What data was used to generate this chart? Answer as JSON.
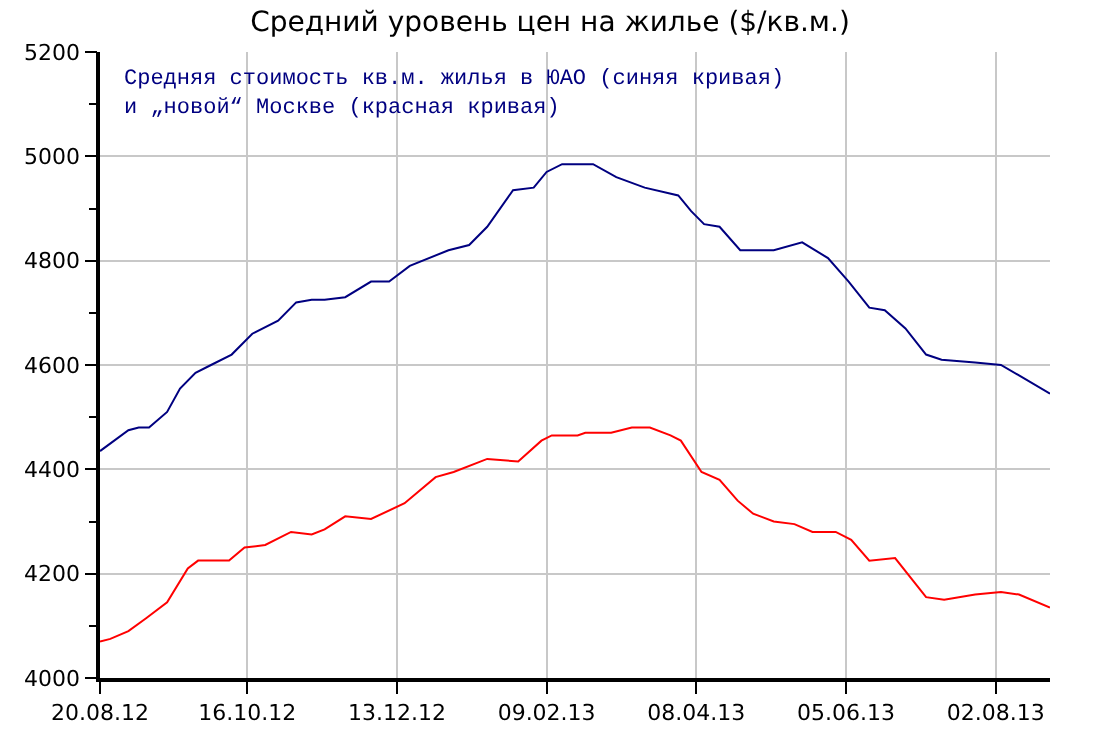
{
  "chart_data": {
    "type": "line",
    "title": "Средний уровень цен на жилье ($/кв.м.)",
    "annotations": [
      "Средняя стоимость кв.м. жилья в ЮАО (синяя кривая)\nи „новой“ Москве (красная кривая)"
    ],
    "series": [
      {
        "color": "#000080",
        "x": [
          "2012-08-20",
          "2012-08-31",
          "2012-09-04",
          "2012-09-08",
          "2012-09-15",
          "2012-09-20",
          "2012-09-26",
          "2012-10-02",
          "2012-10-10",
          "2012-10-18",
          "2012-10-28",
          "2012-11-04",
          "2012-11-10",
          "2012-11-15",
          "2012-11-23",
          "2012-12-03",
          "2012-12-10",
          "2012-12-18",
          "2013-01-02",
          "2013-01-10",
          "2013-01-17",
          "2013-01-27",
          "2013-02-04",
          "2013-02-09",
          "2013-02-15",
          "2013-02-19",
          "2013-02-27",
          "2013-03-08",
          "2013-03-19",
          "2013-04-01",
          "2013-04-06",
          "2013-04-11",
          "2013-04-17",
          "2013-04-25",
          "2013-05-08",
          "2013-05-19",
          "2013-05-29",
          "2013-06-06",
          "2013-06-14",
          "2013-06-20",
          "2013-06-28",
          "2013-07-06",
          "2013-07-12",
          "2013-07-25",
          "2013-08-04",
          "2013-08-11",
          "2013-08-23"
        ],
        "values": [
          4435,
          4475,
          4480,
          4480,
          4510,
          4555,
          4585,
          4600,
          4620,
          4660,
          4685,
          4720,
          4725,
          4725,
          4730,
          4760,
          4760,
          4790,
          4820,
          4830,
          4865,
          4935,
          4940,
          4970,
          4985,
          4985,
          4985,
          4960,
          4940,
          4925,
          4895,
          4870,
          4865,
          4820,
          4820,
          4835,
          4805,
          4760,
          4710,
          4705,
          4670,
          4620,
          4610,
          4605,
          4600,
          4580,
          4545
        ]
      },
      {
        "color": "#ff0000",
        "x": [
          "2012-08-20",
          "2012-08-24",
          "2012-08-31",
          "2012-09-07",
          "2012-09-15",
          "2012-09-23",
          "2012-09-27",
          "2012-10-09",
          "2012-10-15",
          "2012-10-23",
          "2012-11-02",
          "2012-11-10",
          "2012-11-15",
          "2012-11-23",
          "2012-12-03",
          "2012-12-16",
          "2012-12-28",
          "2013-01-04",
          "2013-01-17",
          "2013-01-29",
          "2013-02-07",
          "2013-02-11",
          "2013-02-21",
          "2013-02-24",
          "2013-03-06",
          "2013-03-14",
          "2013-03-21",
          "2013-03-29",
          "2013-04-02",
          "2013-04-10",
          "2013-04-17",
          "2013-04-24",
          "2013-04-30",
          "2013-05-08",
          "2013-05-16",
          "2013-05-23",
          "2013-06-01",
          "2013-06-07",
          "2013-06-14",
          "2013-06-24",
          "2013-07-06",
          "2013-07-13",
          "2013-07-25",
          "2013-08-04",
          "2013-08-11",
          "2013-08-23"
        ],
        "values": [
          4070,
          4075,
          4090,
          4115,
          4145,
          4210,
          4225,
          4225,
          4250,
          4255,
          4280,
          4275,
          4285,
          4310,
          4305,
          4335,
          4385,
          4395,
          4420,
          4415,
          4455,
          4465,
          4465,
          4470,
          4470,
          4480,
          4480,
          4465,
          4455,
          4395,
          4380,
          4340,
          4315,
          4300,
          4295,
          4280,
          4280,
          4265,
          4225,
          4230,
          4155,
          4150,
          4160,
          4165,
          4160,
          4135
        ]
      }
    ],
    "xlim": [
      "2012-08-20",
      "2013-08-23"
    ],
    "xticks": [
      {
        "value": "2012-08-20",
        "label": "20.08.12"
      },
      {
        "value": "2012-10-16",
        "label": "16.10.12"
      },
      {
        "value": "2012-12-13",
        "label": "13.12.12"
      },
      {
        "value": "2013-02-09",
        "label": "09.02.13"
      },
      {
        "value": "2013-04-08",
        "label": "08.04.13"
      },
      {
        "value": "2013-06-05",
        "label": "05.06.13"
      },
      {
        "value": "2013-08-02",
        "label": "02.08.13"
      }
    ],
    "ylim": [
      4000,
      5200
    ],
    "yticks": [
      4000,
      {
        "value": 4100,
        "label": null
      },
      4200,
      {
        "value": 4300,
        "label": null
      },
      4400,
      {
        "value": 4500,
        "label": null
      },
      4600,
      {
        "value": 4700,
        "label": null
      },
      4800,
      {
        "value": 4900,
        "label": null
      },
      5000,
      {
        "value": 5100,
        "label": null
      },
      5200
    ],
    "grid": true,
    "marker": "none",
    "line_style": "solid"
  }
}
